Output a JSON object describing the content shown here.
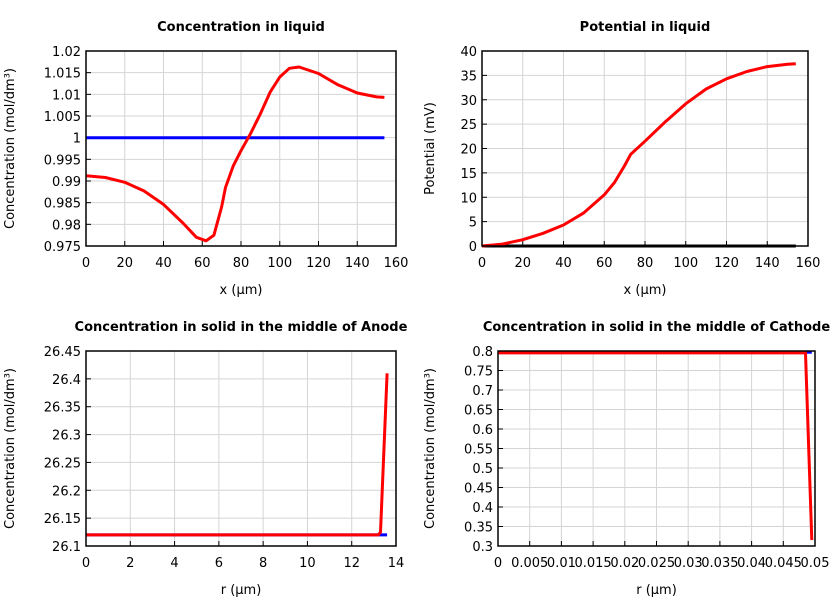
{
  "chart_data": [
    {
      "type": "line",
      "title": "Concentration in liquid",
      "xlabel": "x (µm)",
      "ylabel": "Concentration (mol/dm³)",
      "xlim": [
        0,
        160
      ],
      "ylim": [
        0.975,
        1.02
      ],
      "xticks": [
        "0",
        "20",
        "40",
        "60",
        "80",
        "100",
        "120",
        "140",
        "160"
      ],
      "yticks": [
        "0.975",
        "0.98",
        "0.985",
        "0.99",
        "0.995",
        "1",
        "1.005",
        "1.01",
        "1.015",
        "1.02"
      ],
      "grid": true,
      "series": [
        {
          "color": "#0000ff",
          "x": [
            0,
            154
          ],
          "y": [
            1,
            1
          ]
        },
        {
          "color": "#ff0000",
          "x": [
            0,
            10,
            20,
            30,
            40,
            50,
            57,
            62,
            66,
            70,
            72,
            76,
            80,
            85,
            90,
            95,
            100,
            105,
            110,
            120,
            130,
            140,
            150,
            154
          ],
          "y": [
            0.9912,
            0.9908,
            0.9897,
            0.9877,
            0.9846,
            0.9803,
            0.977,
            0.9762,
            0.9775,
            0.984,
            0.9885,
            0.9935,
            0.997,
            1.001,
            1.0055,
            1.0105,
            1.014,
            1.016,
            1.0163,
            1.0148,
            1.0122,
            1.0103,
            1.0094,
            1.0093
          ]
        }
      ]
    },
    {
      "type": "line",
      "title": "Potential in liquid",
      "xlabel": "x (µm)",
      "ylabel": "Potential (mV)",
      "xlim": [
        0,
        160
      ],
      "ylim": [
        0,
        40
      ],
      "xticks": [
        "0",
        "20",
        "40",
        "60",
        "80",
        "100",
        "120",
        "140",
        "160"
      ],
      "yticks": [
        "0",
        "5",
        "10",
        "15",
        "20",
        "25",
        "30",
        "35",
        "40"
      ],
      "grid": true,
      "series": [
        {
          "color": "#000000",
          "x": [
            0,
            154
          ],
          "y": [
            0,
            0
          ]
        },
        {
          "color": "#ff0000",
          "x": [
            0,
            10,
            20,
            30,
            40,
            50,
            60,
            65,
            70,
            73,
            80,
            90,
            100,
            110,
            120,
            130,
            140,
            150,
            154
          ],
          "y": [
            0,
            0.4,
            1.3,
            2.6,
            4.3,
            6.8,
            10.5,
            13,
            16.5,
            18.8,
            21.5,
            25.5,
            29.2,
            32.2,
            34.3,
            35.8,
            36.8,
            37.3,
            37.4
          ]
        }
      ]
    },
    {
      "type": "line",
      "title": "Concentration in solid in the middle of Anode",
      "xlabel": "r (µm)",
      "ylabel": "Concentration (mol/dm³)",
      "xlim": [
        0,
        14
      ],
      "ylim": [
        26.1,
        26.45
      ],
      "xticks": [
        "0",
        "2",
        "4",
        "6",
        "8",
        "10",
        "12",
        "14"
      ],
      "yticks": [
        "26.1",
        "26.15",
        "26.2",
        "26.25",
        "26.3",
        "26.35",
        "26.4",
        "26.45"
      ],
      "grid": true,
      "series": [
        {
          "color": "#0000ff",
          "x": [
            0,
            13.6
          ],
          "y": [
            26.12,
            26.12
          ]
        },
        {
          "color": "#ff0000",
          "x": [
            0,
            13.2,
            13.3,
            13.6
          ],
          "y": [
            26.12,
            26.12,
            26.125,
            26.41
          ]
        }
      ]
    },
    {
      "type": "line",
      "title": "Concentration in solid in the middle of Cathode",
      "xlabel": "r (µm)",
      "ylabel": "Concentration (mol/dm³)",
      "xlim": [
        0,
        0.05
      ],
      "ylim": [
        0.3,
        0.8
      ],
      "xticks": [
        "0",
        "0.005",
        "0.01",
        "0.015",
        "0.02",
        "0.025",
        "0.03",
        "0.035",
        "0.04",
        "0.045",
        "0.05"
      ],
      "yticks": [
        "0.3",
        "0.35",
        "0.4",
        "0.45",
        "0.5",
        "0.55",
        "0.6",
        "0.65",
        "0.7",
        "0.75",
        "0.8"
      ],
      "grid": true,
      "series": [
        {
          "color": "#0000ff",
          "x": [
            0.0485,
            0.0495
          ],
          "y": [
            0.797,
            0.797
          ]
        },
        {
          "color": "#ff0000",
          "x": [
            0,
            0.0485,
            0.0495
          ],
          "y": [
            0.795,
            0.795,
            0.315
          ]
        }
      ]
    }
  ]
}
